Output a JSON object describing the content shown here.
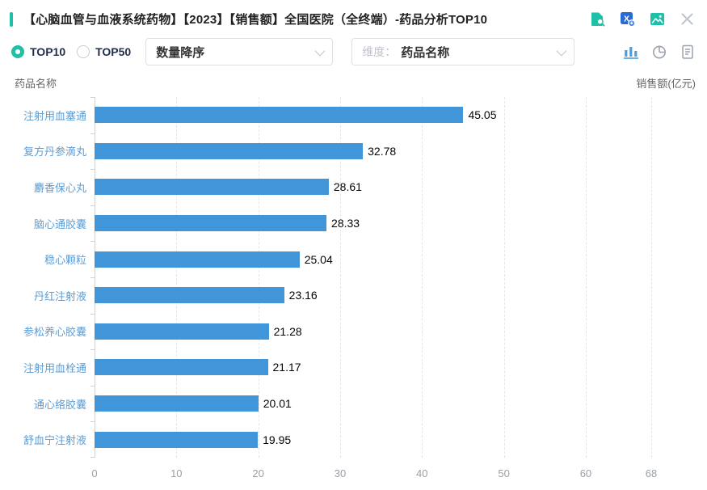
{
  "header": {
    "title": "【心脑血管与血液系统药物】【2023】【销售额】全国医院（全终端）-药品分析TOP10",
    "icons": [
      "data-search-icon",
      "excel-export-icon",
      "save-image-icon",
      "close-icon"
    ]
  },
  "controls": {
    "radio_options": [
      {
        "label": "TOP10",
        "selected": true
      },
      {
        "label": "TOP50",
        "selected": false
      }
    ],
    "sort_select": {
      "value": "数量降序"
    },
    "dimension_select": {
      "label": "维度：",
      "value": "药品名称"
    },
    "view_icons": [
      "bar-chart-icon",
      "pie-chart-icon",
      "report-icon"
    ],
    "active_view": "bar-chart-icon"
  },
  "chart_data": {
    "type": "bar",
    "orientation": "horizontal",
    "title": "",
    "ylabel": "药品名称",
    "xlabel": "销售额(亿元)",
    "categories": [
      "注射用血塞通",
      "复方丹参滴丸",
      "麝香保心丸",
      "脑心通胶囊",
      "稳心颗粒",
      "丹红注射液",
      "参松养心胶囊",
      "注射用血栓通",
      "通心络胶囊",
      "舒血宁注射液"
    ],
    "values": [
      45.05,
      32.78,
      28.61,
      28.33,
      25.04,
      23.16,
      21.28,
      21.17,
      20.01,
      19.95
    ],
    "xlim": [
      0,
      68
    ],
    "xticks": [
      0,
      10,
      20,
      30,
      40,
      50,
      60,
      68
    ],
    "grid": true,
    "legend": false
  },
  "colors": {
    "accent_teal": "#1fc0a7",
    "bar_blue": "#4196d9",
    "category_label_blue": "#5c9dd6",
    "active_icon_blue": "#4a9ede",
    "excel_blue": "#2a6bd2",
    "muted_icon_gray": "#9aa3ad"
  }
}
